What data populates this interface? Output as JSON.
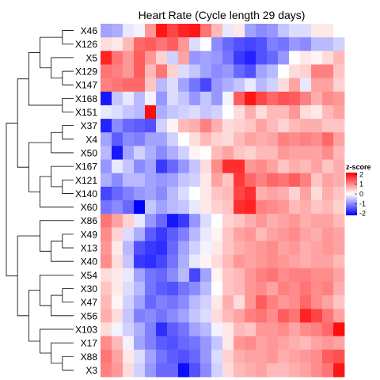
{
  "chart_data": {
    "type": "heatmap",
    "title": "Heart Rate (Cycle length 29 days)",
    "rows": [
      "X46",
      "X126",
      "X5",
      "X129",
      "X147",
      "X168",
      "X151",
      "X37",
      "X4",
      "X50",
      "X167",
      "X121",
      "X140",
      "X60",
      "X86",
      "X49",
      "X13",
      "X40",
      "X54",
      "X30",
      "X47",
      "X56",
      "X103",
      "X17",
      "X88",
      "X3"
    ],
    "n_columns": 22,
    "row_dendrogram": true,
    "values": [
      [
        -0.8,
        -0.7,
        -0.2,
        -0.1,
        0.9,
        2.0,
        1.6,
        1.9,
        2.0,
        1.2,
        0.6,
        -0.2,
        0.2,
        -0.8,
        -1.0,
        -0.9,
        -0.5,
        -0.3,
        -0.3,
        0.2,
        0.2,
        0.0
      ],
      [
        0.3,
        0.2,
        0.6,
        1.3,
        1.4,
        1.2,
        1.4,
        0.9,
        -0.3,
        0.0,
        -1.0,
        -1.3,
        -1.5,
        -1.6,
        -1.5,
        -1.1,
        -1.2,
        -0.9,
        -1.0,
        -0.6,
        -0.6,
        -0.4
      ],
      [
        1.9,
        1.2,
        0.9,
        1.4,
        0.9,
        0.4,
        -0.4,
        0.8,
        -0.9,
        -0.8,
        -0.9,
        -1.2,
        -1.7,
        -1.9,
        -1.5,
        -1.3,
        -0.9,
        0.0,
        0.2,
        0.1,
        0.3,
        0.6
      ],
      [
        1.2,
        1.1,
        0.9,
        1.4,
        0.6,
        1.2,
        0.4,
        -0.3,
        -0.5,
        -0.8,
        -1.0,
        -0.9,
        -1.3,
        -1.5,
        -0.8,
        -0.6,
        0.0,
        0.3,
        0.4,
        1.1,
        1.1,
        0.5
      ],
      [
        1.1,
        1.2,
        1.3,
        1.3,
        0.5,
        -0.6,
        -0.3,
        -0.8,
        -1.2,
        -1.6,
        -0.9,
        -0.7,
        -0.5,
        -0.2,
        -0.6,
        -0.4,
        0.3,
        0.8,
        -0.2,
        0.8,
        0.8,
        0.4
      ],
      [
        -2.0,
        -0.5,
        -0.2,
        -0.6,
        -0.1,
        -0.9,
        -0.3,
        -0.5,
        -0.9,
        -0.5,
        -0.9,
        -0.1,
        1.4,
        2.0,
        1.6,
        1.3,
        1.5,
        1.4,
        1.1,
        0.7,
        1.0,
        0.9
      ],
      [
        -0.2,
        -0.3,
        -0.5,
        -0.6,
        2.1,
        -0.7,
        -0.5,
        -0.4,
        -0.3,
        -0.5,
        -0.4,
        0.0,
        0.3,
        0.7,
        0.3,
        0.6,
        0.6,
        0.9,
        0.3,
        0.2,
        0.6,
        0.8
      ],
      [
        -1.9,
        -1.0,
        -1.3,
        -1.4,
        -1.5,
        -0.4,
        0.1,
        0.6,
        0.7,
        1.1,
        0.7,
        0.3,
        0.4,
        0.5,
        0.8,
        0.6,
        0.4,
        0.6,
        0.7,
        0.7,
        0.5,
        0.5
      ],
      [
        -0.8,
        -1.4,
        -1.0,
        -1.1,
        -0.8,
        -0.8,
        -0.4,
        0.0,
        0.3,
        0.6,
        0.4,
        0.3,
        0.6,
        0.8,
        0.7,
        0.8,
        1.1,
        1.0,
        1.1,
        1.0,
        1.3,
        0.8
      ],
      [
        -0.6,
        -2.0,
        -0.8,
        -0.4,
        -0.7,
        -1.0,
        -0.7,
        -0.4,
        0.1,
        0.0,
        0.6,
        0.8,
        0.5,
        0.4,
        0.6,
        0.6,
        0.9,
        0.8,
        0.8,
        0.8,
        1.0,
        0.6
      ],
      [
        -0.9,
        -0.2,
        -0.5,
        -1.0,
        -0.8,
        -1.7,
        -1.3,
        -0.9,
        -0.5,
        0.3,
        1.0,
        1.8,
        1.8,
        0.9,
        1.0,
        0.8,
        0.5,
        0.7,
        0.6,
        0.8,
        0.5,
        0.7
      ],
      [
        -0.7,
        -1.0,
        -0.6,
        -0.6,
        -0.8,
        -0.9,
        -0.8,
        -0.5,
        -0.4,
        0.2,
        0.8,
        0.5,
        1.7,
        1.3,
        1.1,
        1.3,
        1.2,
        1.4,
        1.1,
        0.5,
        0.8,
        0.7
      ],
      [
        -1.6,
        -1.3,
        -1.1,
        -0.9,
        -0.8,
        -1.0,
        -0.6,
        -0.3,
        0.0,
        0.2,
        0.5,
        0.6,
        1.6,
        1.8,
        0.7,
        0.8,
        0.7,
        0.4,
        0.8,
        0.3,
        0.7,
        0.5
      ],
      [
        -1.2,
        -1.0,
        -1.3,
        -2.2,
        -0.5,
        -0.8,
        -0.6,
        -0.5,
        -0.2,
        0.2,
        0.4,
        0.5,
        1.8,
        1.9,
        1.1,
        1.0,
        0.9,
        0.6,
        0.7,
        0.5,
        0.6,
        0.4
      ],
      [
        1.2,
        0.8,
        0.4,
        -0.2,
        -0.9,
        -1.3,
        -2.0,
        -1.7,
        -0.9,
        -0.3,
        0.0,
        0.4,
        0.5,
        0.7,
        0.9,
        0.7,
        0.8,
        0.9,
        0.7,
        0.8,
        0.8,
        0.6
      ],
      [
        1.0,
        0.4,
        -0.3,
        -0.7,
        -1.4,
        -1.7,
        -1.4,
        -1.1,
        -0.6,
        -0.2,
        0.1,
        0.5,
        0.8,
        0.9,
        0.6,
        0.8,
        0.9,
        1.0,
        0.8,
        0.7,
        0.9,
        0.8
      ],
      [
        0.9,
        0.2,
        -0.6,
        -1.5,
        -1.7,
        -1.8,
        -1.3,
        -0.8,
        -0.4,
        -0.1,
        0.2,
        0.5,
        0.7,
        0.8,
        0.9,
        1.0,
        0.8,
        0.9,
        0.7,
        0.8,
        0.9,
        0.8
      ],
      [
        1.0,
        0.3,
        -0.5,
        -1.7,
        -1.8,
        -1.6,
        -1.2,
        -0.7,
        -0.2,
        0.1,
        0.3,
        0.6,
        0.9,
        0.8,
        0.9,
        1.0,
        0.9,
        0.8,
        0.7,
        0.8,
        0.8,
        0.6
      ],
      [
        0.3,
        0.2,
        -0.2,
        -0.8,
        -1.2,
        -1.3,
        -1.0,
        -0.6,
        -1.6,
        -0.8,
        0.1,
        0.5,
        0.6,
        0.9,
        1.1,
        1.2,
        1.0,
        1.1,
        1.1,
        1.0,
        1.0,
        0.8
      ],
      [
        0.5,
        0.2,
        -0.3,
        -0.6,
        -1.2,
        -1.4,
        -1.5,
        -1.2,
        -1.0,
        -0.6,
        0.0,
        0.5,
        0.6,
        0.9,
        1.0,
        0.8,
        1.1,
        1.0,
        1.2,
        1.0,
        1.1,
        0.7
      ],
      [
        0.6,
        0.1,
        -0.4,
        -0.8,
        -1.3,
        -1.1,
        -1.2,
        -1.0,
        -0.6,
        -0.4,
        0.2,
        0.7,
        0.3,
        0.9,
        1.4,
        1.1,
        0.9,
        1.0,
        1.3,
        1.0,
        0.8,
        0.5
      ],
      [
        0.7,
        0.3,
        -0.5,
        -1.1,
        -1.0,
        -1.2,
        -1.0,
        -0.8,
        -0.5,
        -0.3,
        0.3,
        0.6,
        0.8,
        1.1,
        1.2,
        1.0,
        1.4,
        1.2,
        1.9,
        1.6,
        1.2,
        0.8
      ],
      [
        0.3,
        -0.1,
        -0.4,
        -0.7,
        -1.1,
        -1.8,
        -1.4,
        -1.2,
        -0.8,
        -0.6,
        -0.1,
        0.2,
        0.6,
        0.5,
        0.9,
        0.9,
        1.0,
        0.8,
        1.0,
        1.1,
        1.3,
        2.1
      ],
      [
        1.0,
        0.6,
        -0.1,
        -0.8,
        -1.1,
        -1.4,
        -1.5,
        -1.3,
        -1.2,
        -0.9,
        -0.5,
        0.2,
        0.9,
        1.0,
        0.8,
        0.9,
        0.8,
        0.7,
        0.6,
        0.8,
        0.9,
        0.8
      ],
      [
        1.2,
        0.8,
        0.2,
        -0.3,
        -0.8,
        -1.2,
        -1.4,
        -1.5,
        -1.3,
        -0.9,
        -0.3,
        0.4,
        0.7,
        0.8,
        0.8,
        0.9,
        0.7,
        0.8,
        0.9,
        1.0,
        1.4,
        1.5
      ],
      [
        1.1,
        0.9,
        0.3,
        -0.4,
        -0.9,
        -1.3,
        -1.3,
        -2.1,
        -1.5,
        -1.0,
        -0.4,
        0.3,
        0.6,
        0.7,
        0.8,
        0.6,
        0.6,
        0.7,
        0.8,
        1.0,
        1.2,
        2.0
      ]
    ],
    "legend": {
      "title": "z-score",
      "ticks": [
        "2",
        "1",
        "0",
        "-1",
        "-2"
      ],
      "tick_values": [
        2,
        1,
        0,
        -1,
        -2
      ],
      "range": [
        -2.2,
        2.2
      ],
      "placement": "right"
    },
    "colors": {
      "low": "#0000ff",
      "mid": "#ffffff",
      "high": "#ff0000"
    }
  }
}
